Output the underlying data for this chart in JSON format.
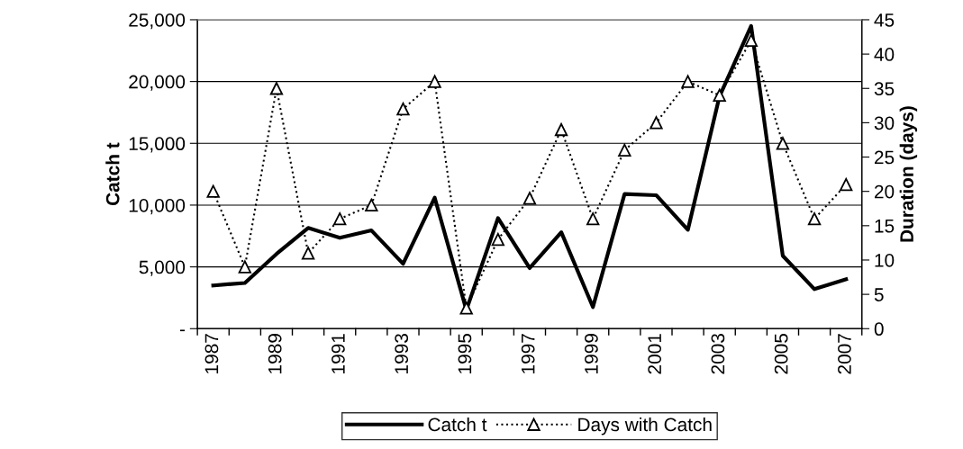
{
  "chart_data": {
    "type": "line",
    "ylabel": "Catch t",
    "y2label": "Duration (days)",
    "categories": [
      "1987",
      null,
      "1989",
      null,
      "1991",
      null,
      "1993",
      null,
      "1995",
      null,
      "1997",
      null,
      "1999",
      null,
      "2001",
      null,
      "2003",
      null,
      "2005",
      null,
      "2007"
    ],
    "series": [
      {
        "name": "Catch t",
        "color": "#000000",
        "line_style": "solid",
        "marker": "none",
        "values": [
          3500,
          3700,
          6050,
          8150,
          7350,
          7950,
          5250,
          10600,
          1500,
          8950,
          4900,
          7800,
          1750,
          10900,
          10800,
          8000,
          18800,
          24500,
          5900,
          3200,
          4000
        ]
      },
      {
        "name": "Days with Catch",
        "color": "#000000",
        "axis": "y2",
        "line_style": "dotted",
        "marker": "triangle",
        "values": [
          20,
          9,
          35,
          11,
          16,
          18,
          32,
          36,
          3,
          13,
          19,
          29,
          16,
          26,
          30,
          36,
          34,
          42,
          27,
          16,
          21
        ]
      }
    ],
    "ylim": [
      0,
      25000
    ],
    "yticks": [
      {
        "value": 0,
        "label": "-"
      },
      {
        "value": 5000,
        "label": "5,000"
      },
      {
        "value": 10000,
        "label": "10,000"
      },
      {
        "value": 15000,
        "label": "15,000"
      },
      {
        "value": 20000,
        "label": "20,000"
      },
      {
        "value": 25000,
        "label": "25,000"
      }
    ],
    "y2lim": [
      0,
      45
    ],
    "y2ticks": [
      0,
      5,
      10,
      15,
      20,
      25,
      30,
      35,
      40,
      45
    ],
    "grid": "y",
    "legend": "bottom"
  }
}
